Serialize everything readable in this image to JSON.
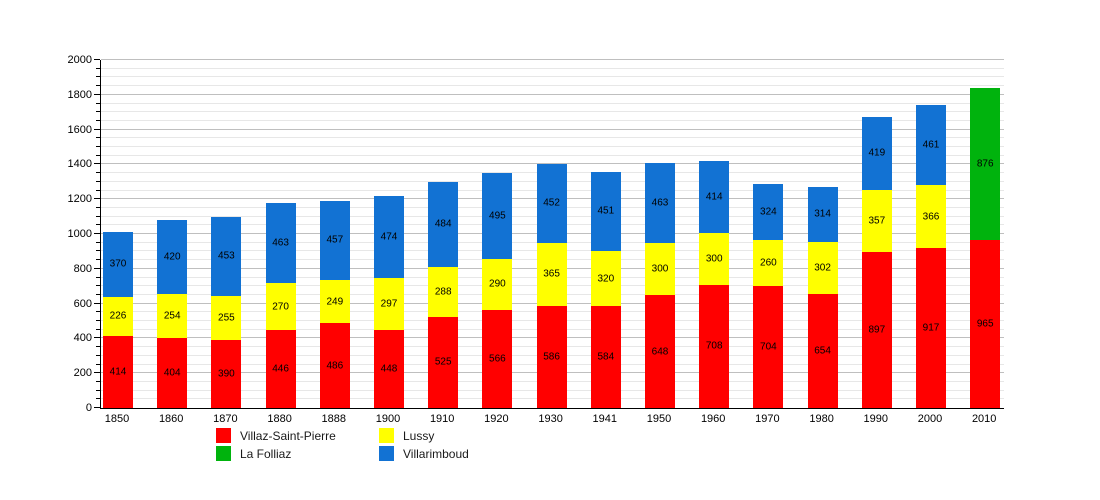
{
  "chart_data": {
    "type": "bar",
    "stacked": true,
    "title": "",
    "xlabel": "",
    "ylabel": "",
    "categories": [
      "1850",
      "1860",
      "1870",
      "1880",
      "1888",
      "1900",
      "1910",
      "1920",
      "1930",
      "1941",
      "1950",
      "1960",
      "1970",
      "1980",
      "1990",
      "2000",
      "2010"
    ],
    "series": [
      {
        "name": "Villaz-Saint-Pierre",
        "color": "#ff0000",
        "values": [
          414,
          404,
          390,
          446,
          486,
          448,
          525,
          566,
          586,
          584,
          648,
          708,
          704,
          654,
          897,
          917,
          965
        ]
      },
      {
        "name": "Lussy",
        "color": "#ffff00",
        "values": [
          226,
          254,
          255,
          270,
          249,
          297,
          288,
          290,
          365,
          320,
          300,
          300,
          260,
          302,
          357,
          366,
          0
        ]
      },
      {
        "name": "Villarimboud",
        "color": "#1272d3",
        "values": [
          370,
          420,
          453,
          463,
          457,
          474,
          484,
          495,
          452,
          451,
          463,
          414,
          324,
          314,
          419,
          461,
          0
        ]
      },
      {
        "name": "La Folliaz",
        "color": "#00b30d",
        "values": [
          0,
          0,
          0,
          0,
          0,
          0,
          0,
          0,
          0,
          0,
          0,
          0,
          0,
          0,
          0,
          0,
          876
        ]
      }
    ],
    "ylim": [
      0,
      2000
    ],
    "ytick_step": 200,
    "yminor_step": 50,
    "grid": true,
    "legend_position": "bottom",
    "legend_order": [
      "Villaz-Saint-Pierre",
      "Lussy",
      "La Folliaz",
      "Villarimboud"
    ]
  }
}
